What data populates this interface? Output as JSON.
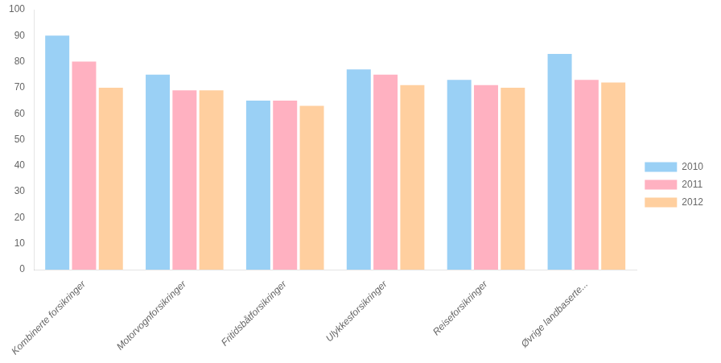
{
  "chart_data": {
    "type": "bar",
    "categories": [
      "Kombinerte forsikringer",
      "Motorvognforsikringer",
      "Fritidsbåtforsikringer",
      "Ulykkesforsikringer",
      "Reiseforsikringer",
      "Øvrige landbaserte..."
    ],
    "series": [
      {
        "name": "2010",
        "values": [
          90,
          75,
          65,
          77,
          73,
          83
        ]
      },
      {
        "name": "2011",
        "values": [
          80,
          69,
          65,
          75,
          71,
          73
        ]
      },
      {
        "name": "2012",
        "values": [
          70,
          69,
          63,
          71,
          70,
          72
        ]
      }
    ],
    "ylim": [
      0,
      100
    ],
    "yticks": [
      0,
      10,
      20,
      30,
      40,
      50,
      60,
      70,
      80,
      90,
      100
    ],
    "grid": false,
    "legend": "right"
  }
}
